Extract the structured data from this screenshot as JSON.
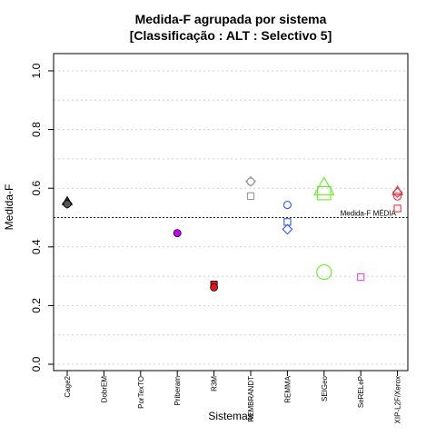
{
  "chart_data": {
    "type": "scatter",
    "title": "Medida-F agrupada por sistema",
    "subtitle": "[Classificação : ALT : Selectivo 5]",
    "xlabel": "Sistemas",
    "ylabel": "Medida-F",
    "ylim": [
      0.0,
      1.0
    ],
    "y_ticks": [
      "0.0",
      "0.2",
      "0.4",
      "0.6",
      "0.8",
      "1.0"
    ],
    "grid": "horizontal dotted",
    "categories": [
      "Cage2",
      "DobrEM",
      "PorTexTO",
      "Priberam",
      "R3M",
      "REMBRANDT",
      "REMMA",
      "SEIGeo",
      "SeRELeP",
      "XIP-L2F/Xerox"
    ],
    "reference_line": {
      "label": "Medida-F MÉDIA",
      "value": 0.5
    },
    "series": [
      {
        "category": "Cage2",
        "color": "#555555",
        "points": [
          {
            "y": 0.555,
            "shape": "triangle",
            "filled": true
          },
          {
            "y": 0.548,
            "shape": "diamond",
            "filled": true
          },
          {
            "y": 0.546,
            "shape": "circle",
            "filled": true
          }
        ]
      },
      {
        "category": "Priberam",
        "color": "#cc00ff",
        "points": [
          {
            "y": 0.447,
            "shape": "circle",
            "filled": true
          }
        ]
      },
      {
        "category": "R3M",
        "color": "#e8141a",
        "points": [
          {
            "y": 0.272,
            "shape": "square",
            "filled": true
          },
          {
            "y": 0.262,
            "shape": "circle",
            "filled": true
          }
        ]
      },
      {
        "category": "REMBRANDT",
        "color": "#999999",
        "points": [
          {
            "y": 0.623,
            "shape": "diamond",
            "filled": false
          },
          {
            "y": 0.622,
            "shape": "circle",
            "filled": false
          },
          {
            "y": 0.573,
            "shape": "square",
            "filled": false
          }
        ]
      },
      {
        "category": "REMMA",
        "color": "#3355ff",
        "points": [
          {
            "y": 0.543,
            "shape": "circle",
            "filled": false
          },
          {
            "y": 0.485,
            "shape": "square",
            "filled": false
          },
          {
            "y": 0.46,
            "shape": "diamond",
            "filled": false
          }
        ]
      },
      {
        "category": "SEIGeo",
        "color": "#66ee22",
        "points": [
          {
            "y": 0.603,
            "shape": "triangle",
            "filled": false,
            "size": "large"
          },
          {
            "y": 0.583,
            "shape": "square",
            "filled": false,
            "size": "large"
          },
          {
            "y": 0.314,
            "shape": "circle",
            "filled": false,
            "size": "large"
          }
        ]
      },
      {
        "category": "SeRELeP",
        "color": "#ee44ee",
        "points": [
          {
            "y": 0.297,
            "shape": "square",
            "filled": false
          }
        ]
      },
      {
        "category": "XIP-L2F/Xerox",
        "color": "#ee3344",
        "points": [
          {
            "y": 0.59,
            "shape": "triangle",
            "filled": false
          },
          {
            "y": 0.585,
            "shape": "diamond",
            "filled": false
          },
          {
            "y": 0.572,
            "shape": "circle",
            "filled": false
          },
          {
            "y": 0.531,
            "shape": "square",
            "filled": false
          }
        ]
      }
    ]
  }
}
